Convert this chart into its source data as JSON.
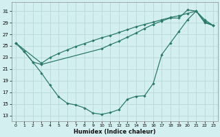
{
  "xlabel": "Humidex (Indice chaleur)",
  "bg_color": "#d4efef",
  "grid_color": "#b8d8d8",
  "line_color": "#2a7a6a",
  "xlim": [
    -0.5,
    23.5
  ],
  "ylim": [
    12,
    32.5
  ],
  "xticks": [
    0,
    1,
    2,
    3,
    4,
    5,
    6,
    7,
    8,
    9,
    10,
    11,
    12,
    13,
    14,
    15,
    16,
    17,
    18,
    19,
    20,
    21,
    22,
    23
  ],
  "yticks": [
    13,
    15,
    17,
    19,
    21,
    23,
    25,
    27,
    29,
    31
  ],
  "line1_x": [
    0,
    1,
    2,
    3,
    4,
    5,
    6,
    7,
    8,
    9,
    10,
    11,
    12,
    13,
    14,
    15,
    16,
    17,
    18,
    19,
    20,
    21,
    22,
    23
  ],
  "line1_y": [
    25.5,
    24.0,
    22.2,
    20.3,
    18.2,
    16.2,
    15.1,
    14.8,
    14.3,
    13.4,
    13.2,
    13.5,
    14.0,
    15.8,
    16.3,
    16.4,
    18.5,
    23.5,
    25.5,
    27.5,
    29.5,
    31.0,
    29.0,
    28.5
  ],
  "line2_x": [
    0,
    3,
    4,
    5,
    6,
    7,
    8,
    9,
    10,
    11,
    12,
    13,
    14,
    15,
    16,
    17,
    18,
    19,
    20,
    21,
    22,
    23
  ],
  "line2_y": [
    25.5,
    22.0,
    23.0,
    23.7,
    24.3,
    24.9,
    25.4,
    25.9,
    26.4,
    26.8,
    27.3,
    27.8,
    28.3,
    28.7,
    29.1,
    29.5,
    29.9,
    30.2,
    30.6,
    31.0,
    29.2,
    28.5
  ],
  "line3_x": [
    0,
    1,
    2,
    3,
    10,
    11,
    12,
    13,
    14,
    15,
    16,
    17,
    18,
    19,
    20,
    21,
    22,
    23
  ],
  "line3_y": [
    25.5,
    24.0,
    22.2,
    21.8,
    24.5,
    25.2,
    25.8,
    26.5,
    27.2,
    28.0,
    28.7,
    29.3,
    29.8,
    29.8,
    31.2,
    31.0,
    29.5,
    28.5
  ]
}
